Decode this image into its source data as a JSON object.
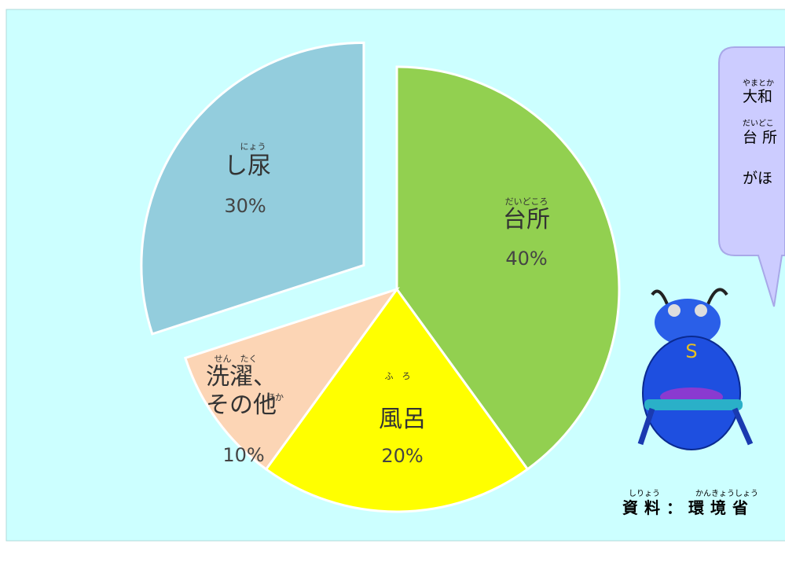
{
  "chart_data": {
    "type": "pie",
    "categories": [
      "台所",
      "風呂",
      "洗濯、その他",
      "し尿"
    ],
    "ruby": [
      [
        "だいどころ"
      ],
      [
        "ふ　ろ"
      ],
      [
        "せん　たく",
        "ほか"
      ],
      [
        "にょう"
      ]
    ],
    "values": [
      40,
      20,
      10,
      30
    ],
    "value_labels": [
      "40%",
      "20%",
      "10%",
      "30%"
    ],
    "colors": [
      "#92d050",
      "#ffff00",
      "#fcd5b5",
      "#93cddd"
    ],
    "explode": [
      false,
      false,
      false,
      true
    ]
  },
  "bubble": {
    "lines": [
      "大和",
      "台 所",
      "がほ"
    ],
    "ruby": [
      "やまとか",
      "だいどこ"
    ]
  },
  "source": {
    "text": "資料：環境省",
    "ruby": [
      "しりょう",
      "かんきょうしょう"
    ]
  }
}
